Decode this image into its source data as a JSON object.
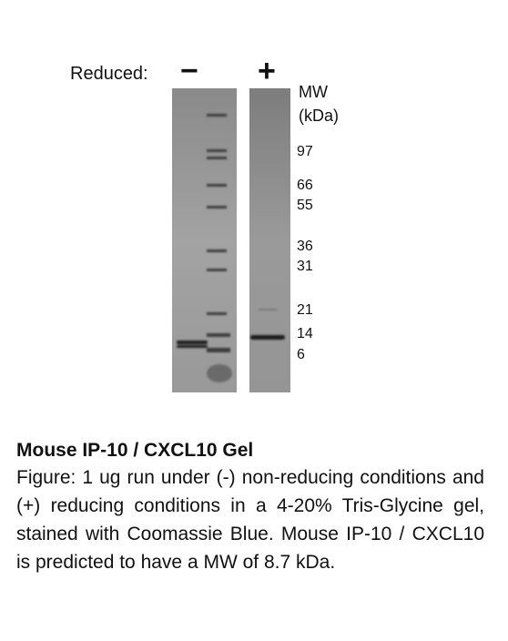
{
  "gel": {
    "reduced_label": "Reduced:",
    "lane_signs": [
      "−",
      "+"
    ],
    "mw_header": "MW\n(kDa)",
    "markers": [
      "97",
      "66",
      "55",
      "36",
      "31",
      "21",
      "14",
      "6"
    ]
  },
  "caption": {
    "title": "Mouse IP-10 / CXCL10 Gel",
    "body": "Figure:  1 ug run under (-) non-reducing conditions and (+) reducing conditions in a 4-20% Tris-Glycine gel, stained with Coomassie Blue. Mouse IP-10 / CXCL10 is predicted to have a MW of 8.7 kDa."
  }
}
